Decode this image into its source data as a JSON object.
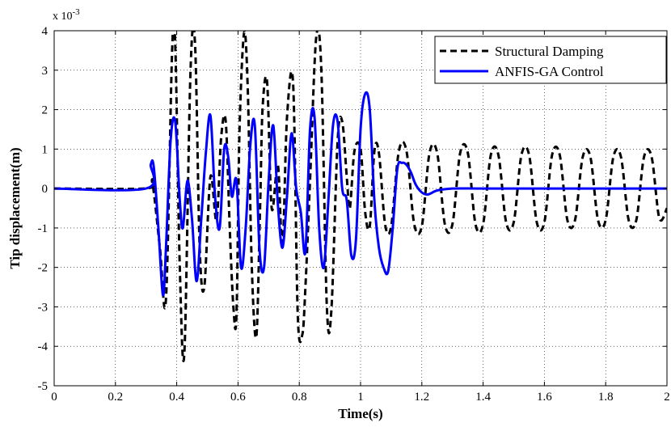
{
  "chart_data": {
    "type": "line",
    "xlabel": "Time(s)",
    "ylabel": "Tip displacement(m)",
    "y_multiplier_label": "x 10",
    "y_multiplier_exponent": "-3",
    "xlim": [
      0,
      2
    ],
    "ylim": [
      -5,
      4
    ],
    "x_ticks": [
      "0",
      "0.2",
      "0.4",
      "0.6",
      "0.8",
      "1",
      "1.2",
      "1.4",
      "1.6",
      "1.8",
      "2"
    ],
    "y_ticks": [
      "4",
      "3",
      "2",
      "1",
      "0",
      "-1",
      "-2",
      "-3",
      "-4",
      "-5"
    ],
    "grid": true,
    "legend_position": "top-right",
    "series": [
      {
        "name": "Structural Damping",
        "color": "#000000",
        "style": "dashed",
        "x": [
          0,
          0.3,
          0.32,
          0.345,
          0.365,
          0.385,
          0.395,
          0.41,
          0.425,
          0.445,
          0.46,
          0.475,
          0.49,
          0.51,
          0.53,
          0.545,
          0.56,
          0.573,
          0.585,
          0.595,
          0.605,
          0.62,
          0.632,
          0.645,
          0.66,
          0.672,
          0.68,
          0.695,
          0.71,
          0.73,
          0.745,
          0.76,
          0.78,
          0.795,
          0.81,
          0.82,
          0.835,
          0.855,
          0.872,
          0.89,
          0.905,
          0.925,
          0.94,
          0.955,
          0.965,
          0.98,
          1.0,
          1.015,
          1.03,
          1.045,
          1.06,
          1.08,
          1.1,
          1.125,
          1.15,
          1.175,
          1.2,
          1.225,
          1.25,
          1.275,
          1.3,
          1.325,
          1.35,
          1.375,
          1.4,
          1.425,
          1.45,
          1.475,
          1.5,
          1.525,
          1.55,
          1.575,
          1.6,
          1.625,
          1.65,
          1.675,
          1.7,
          1.725,
          1.75,
          1.775,
          1.8,
          1.825,
          1.85,
          1.875,
          1.9,
          1.925,
          1.95,
          1.975,
          2.0
        ],
        "y": [
          0,
          0,
          0.15,
          -1.5,
          -2.8,
          3.5,
          3.7,
          -2.0,
          -4.15,
          3.0,
          3.65,
          -1.5,
          -2.5,
          0.3,
          -0.8,
          1.3,
          1.7,
          -1.0,
          -3.0,
          -3.2,
          1.5,
          3.95,
          2.5,
          -2.0,
          -3.75,
          -0.5,
          2.0,
          2.7,
          -0.5,
          0.6,
          -1.5,
          1.8,
          2.65,
          -3.2,
          -3.7,
          -2.5,
          0.2,
          3.8,
          3.0,
          -3.0,
          -3.05,
          1.2,
          1.7,
          0.3,
          -0.5,
          0.95,
          1.0,
          -0.6,
          -0.95,
          0.95,
          0.9,
          -0.9,
          -0.95,
          0.95,
          0.95,
          -0.9,
          -0.95,
          0.9,
          0.9,
          -0.9,
          -0.9,
          0.9,
          0.9,
          -0.9,
          -0.9,
          0.85,
          0.85,
          -0.85,
          -0.85,
          0.85,
          0.85,
          -0.85,
          -0.85,
          0.85,
          0.85,
          -0.8,
          -0.8,
          0.8,
          0.8,
          -0.8,
          -0.8,
          0.8,
          0.8,
          -0.8,
          -0.8,
          0.8,
          0.8,
          -0.75,
          -0.5
        ]
      },
      {
        "name": "ANFIS-GA Control",
        "color": "#0000ff",
        "style": "solid",
        "x": [
          0,
          0.3,
          0.315,
          0.325,
          0.34,
          0.355,
          0.365,
          0.38,
          0.395,
          0.41,
          0.42,
          0.435,
          0.45,
          0.465,
          0.48,
          0.495,
          0.51,
          0.525,
          0.54,
          0.555,
          0.568,
          0.58,
          0.595,
          0.61,
          0.625,
          0.64,
          0.655,
          0.67,
          0.685,
          0.7,
          0.715,
          0.73,
          0.745,
          0.76,
          0.775,
          0.79,
          0.805,
          0.82,
          0.835,
          0.85,
          0.865,
          0.88,
          0.895,
          0.91,
          0.925,
          0.94,
          0.955,
          0.97,
          0.985,
          1.0,
          1.015,
          1.03,
          1.045,
          1.06,
          1.075,
          1.09,
          1.105,
          1.12,
          1.135,
          1.15,
          1.165,
          1.18,
          1.2,
          1.22,
          1.25,
          1.3,
          1.4,
          1.6,
          1.8,
          2.0
        ],
        "y": [
          0,
          0,
          0.6,
          0.55,
          -1.0,
          -2.7,
          -1.5,
          1.2,
          1.7,
          -0.3,
          -1.0,
          0.2,
          -0.8,
          -2.35,
          -0.8,
          0.9,
          1.85,
          -0.2,
          -1.0,
          1.0,
          0.8,
          -0.2,
          0.2,
          -2.0,
          -1.0,
          1.1,
          1.6,
          -1.5,
          -2.0,
          0.2,
          1.6,
          -0.4,
          -1.5,
          -0.2,
          1.4,
          0.0,
          -0.6,
          -1.6,
          1.5,
          1.8,
          -1.0,
          -2.0,
          -0.3,
          1.6,
          1.7,
          0.0,
          -0.3,
          -1.7,
          -1.3,
          1.5,
          2.4,
          2.0,
          -0.3,
          -1.5,
          -2.0,
          -2.1,
          -1.0,
          0.5,
          0.65,
          0.6,
          0.4,
          0.1,
          -0.1,
          -0.15,
          -0.05,
          0.0,
          0.0,
          0.0,
          0.0,
          0.0
        ]
      }
    ]
  }
}
